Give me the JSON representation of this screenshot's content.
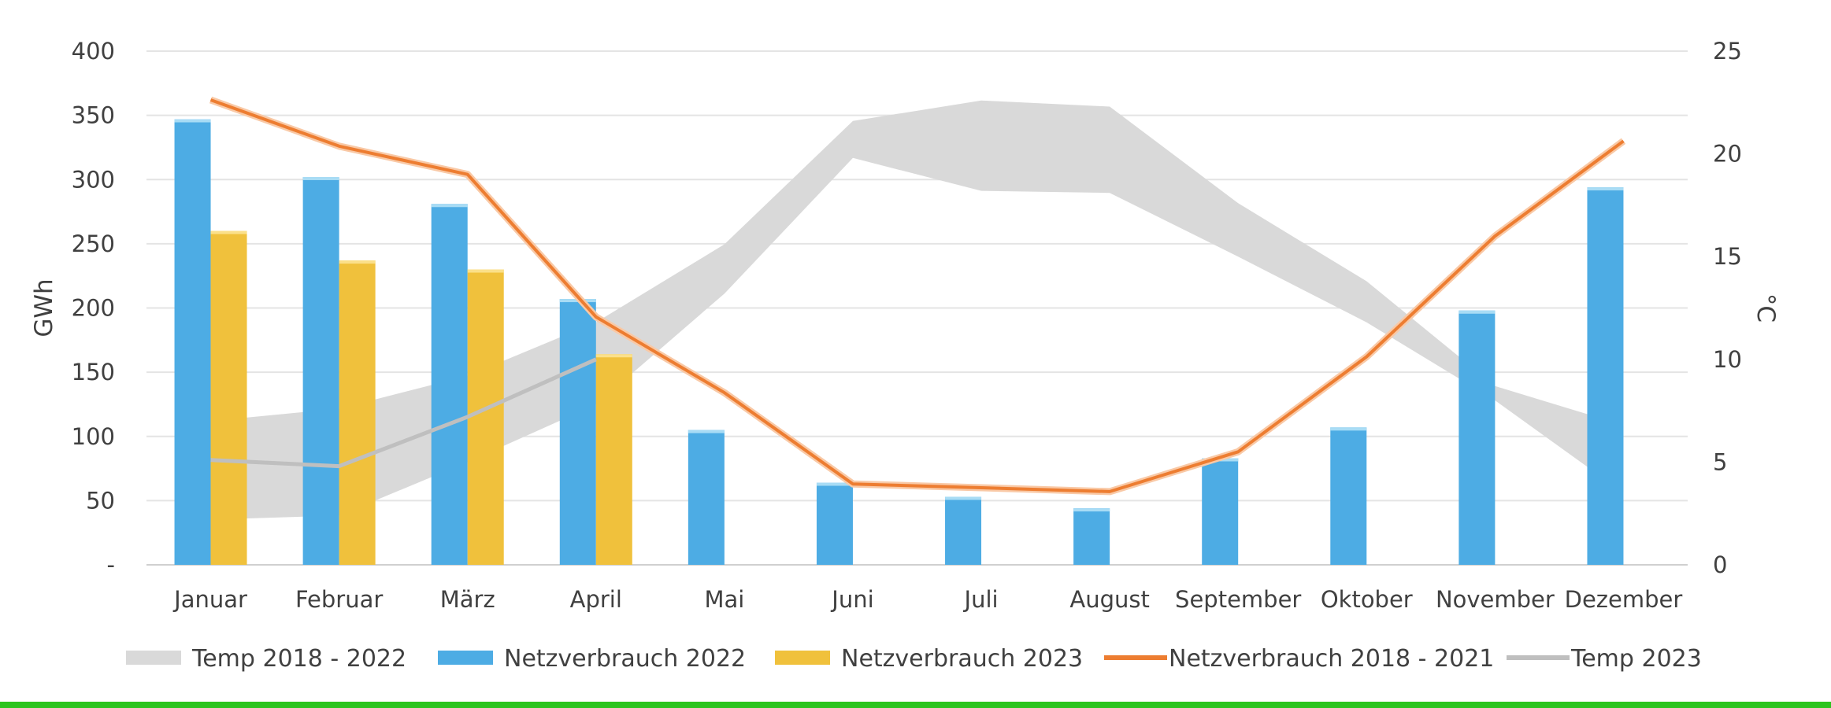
{
  "chart_data": {
    "type": "bar",
    "categories": [
      "Januar",
      "Februar",
      "März",
      "April",
      "Mai",
      "Juni",
      "Juli",
      "August",
      "September",
      "Oktober",
      "November",
      "Dezember"
    ],
    "ylabel": "GWh",
    "ylabel_right": "°C",
    "ylim": [
      0,
      400
    ],
    "ylim_right": [
      0,
      25
    ],
    "y_ticks": [
      "-",
      "50",
      "100",
      "150",
      "200",
      "250",
      "300",
      "350",
      "400"
    ],
    "y_ticks_right": [
      "0",
      "5",
      "10",
      "15",
      "20",
      "25"
    ],
    "grid": true,
    "legend_position": "bottom",
    "series": [
      {
        "name": "Temp 2018 - 2022",
        "type": "band",
        "axis": "right",
        "color": "#d9d9d9",
        "low": [
          2.2,
          2.4,
          5.0,
          7.8,
          13.2,
          19.8,
          18.2,
          18.1,
          15.0,
          11.8,
          8.0,
          3.5
        ],
        "high": [
          7.0,
          7.6,
          9.2,
          11.8,
          15.6,
          21.6,
          22.6,
          22.3,
          17.6,
          13.8,
          8.7,
          6.8
        ]
      },
      {
        "name": "Netzverbrauch 2022",
        "type": "bar",
        "axis": "left",
        "color": "#4dace4",
        "values": [
          347,
          302,
          281,
          207,
          105,
          64,
          53,
          44,
          83,
          107,
          198,
          294
        ]
      },
      {
        "name": "Netzverbrauch 2023",
        "type": "bar",
        "axis": "left",
        "color": "#f0c13c",
        "values": [
          260,
          237,
          230,
          164,
          null,
          null,
          null,
          null,
          null,
          null,
          null,
          null
        ]
      },
      {
        "name": "Netzverbrauch 2018 - 2021",
        "type": "line",
        "axis": "left",
        "color": "#ed7d31",
        "values": [
          362,
          326,
          304,
          193,
          134,
          63,
          60,
          57,
          88,
          162,
          256,
          330
        ]
      },
      {
        "name": "Temp 2023",
        "type": "line",
        "axis": "right",
        "color": "#bfbfbf",
        "values": [
          5.1,
          4.8,
          7.2,
          10.0,
          null,
          null,
          null,
          null,
          null,
          null,
          null,
          null
        ]
      }
    ]
  }
}
